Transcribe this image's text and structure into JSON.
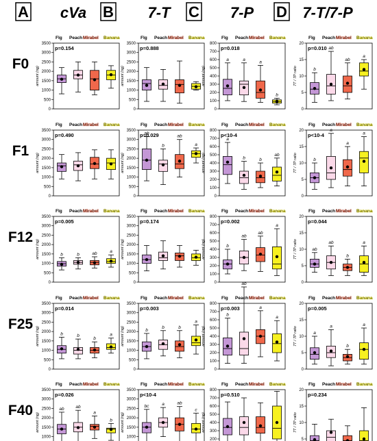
{
  "header": {
    "columns": [
      {
        "letter": "A",
        "title": "cVa"
      },
      {
        "letter": "B",
        "title": "7-T"
      },
      {
        "letter": "C",
        "title": "7-P"
      },
      {
        "letter": "D",
        "title": "7-T/7-P"
      }
    ]
  },
  "row_labels": [
    "F0",
    "F1",
    "F12",
    "F25",
    "F40"
  ],
  "colors": {
    "Flg": "#c497d6",
    "Peach": "#fbd9e9",
    "Mirabel": "#f0684b",
    "Banana": "#f7f120"
  },
  "chart_data": {
    "type": "boxplot-grid",
    "categories": [
      "Flg",
      "Peach",
      "Mirabel",
      "Banana"
    ],
    "columns": [
      {
        "key": "cVa",
        "ylabel": "amount (ng)",
        "yticks": [
          "0",
          "500",
          "1000",
          "1500",
          "2000",
          "2500",
          "3000",
          "3500"
        ],
        "ylim": [
          0,
          3500
        ]
      },
      {
        "key": "7-T",
        "ylabel": "amount (ng)",
        "yticks": [
          "0",
          "500",
          "1000",
          "1500",
          "2000",
          "2500",
          "3000",
          "3500"
        ],
        "ylim": [
          0,
          3500
        ]
      },
      {
        "key": "7-P",
        "ylabel": "amount (ng)",
        "yticks": [
          "0",
          "100",
          "200",
          "300",
          "400",
          "500",
          "600",
          "700",
          "800"
        ],
        "ylim": [
          0,
          800
        ]
      },
      {
        "key": "7-T/7-P",
        "ylabel": "7T / 7P ratio",
        "yticks": [
          "0",
          "5",
          "10",
          "15",
          "20"
        ],
        "ylim": [
          0,
          20
        ]
      }
    ],
    "panels": [
      {
        "row": "F0",
        "col": "cVa",
        "p": "p=0.154",
        "letters": [
          "",
          "",
          "",
          ""
        ],
        "boxes": [
          {
            "min": 800,
            "q1": 1400,
            "median": 1600,
            "q3": 1800,
            "max": 2200,
            "mean": 1580
          },
          {
            "min": 900,
            "q1": 1600,
            "median": 1800,
            "q3": 2050,
            "max": 2500,
            "mean": 1800
          },
          {
            "min": 750,
            "q1": 1000,
            "median": 1600,
            "q3": 2050,
            "max": 2500,
            "mean": 1550
          },
          {
            "min": 1100,
            "q1": 1550,
            "median": 1800,
            "q3": 2050,
            "max": 2300,
            "mean": 1820
          }
        ]
      },
      {
        "row": "F0",
        "col": "7-T",
        "p": "p=0.888",
        "letters": [
          "",
          "",
          "",
          ""
        ],
        "boxes": [
          {
            "min": 400,
            "q1": 1000,
            "median": 1350,
            "q3": 1550,
            "max": 2200,
            "mean": 1250
          },
          {
            "min": 400,
            "q1": 1050,
            "median": 1250,
            "q3": 1550,
            "max": 2100,
            "mean": 1320
          },
          {
            "min": 300,
            "q1": 850,
            "median": 1300,
            "q3": 1550,
            "max": 2550,
            "mean": 1250
          },
          {
            "min": 1000,
            "q1": 1050,
            "median": 1200,
            "q3": 1350,
            "max": 1450,
            "mean": 1180
          }
        ]
      },
      {
        "row": "F0",
        "col": "7-P",
        "p": "p=0.018",
        "letters": [
          "a",
          "a",
          "a",
          "b"
        ],
        "boxes": [
          {
            "min": 100,
            "q1": 170,
            "median": 250,
            "q3": 360,
            "max": 560,
            "mean": 280
          },
          {
            "min": 90,
            "q1": 170,
            "median": 300,
            "q3": 340,
            "max": 560,
            "mean": 260
          },
          {
            "min": 80,
            "q1": 130,
            "median": 200,
            "q3": 340,
            "max": 530,
            "mean": 230
          },
          {
            "min": 50,
            "q1": 70,
            "median": 90,
            "q3": 110,
            "max": 130,
            "mean": 90
          }
        ]
      },
      {
        "row": "F0",
        "col": "7-T/7-P",
        "p": "p=0.010",
        "letters": [
          "b",
          "ab",
          "ab",
          "a"
        ],
        "boxes": [
          {
            "min": 2,
            "q1": 4.5,
            "median": 6,
            "q3": 8,
            "max": 11,
            "mean": 6.2
          },
          {
            "min": 2.5,
            "q1": 4.5,
            "median": 7,
            "q3": 10.5,
            "max": 17.5,
            "mean": 7.5
          },
          {
            "min": 3,
            "q1": 5,
            "median": 7,
            "q3": 10,
            "max": 14,
            "mean": 7.8
          },
          {
            "min": 6,
            "q1": 10,
            "median": 11.5,
            "q3": 14,
            "max": 15,
            "mean": 12
          }
        ]
      },
      {
        "row": "F1",
        "col": "cVa",
        "p": "p=0.490",
        "letters": [
          "",
          "",
          "",
          ""
        ],
        "boxes": [
          {
            "min": 900,
            "q1": 1300,
            "median": 1600,
            "q3": 1750,
            "max": 2200,
            "mean": 1550
          },
          {
            "min": 800,
            "q1": 1350,
            "median": 1650,
            "q3": 1850,
            "max": 2300,
            "mean": 1600
          },
          {
            "min": 900,
            "q1": 1450,
            "median": 1700,
            "q3": 2050,
            "max": 2450,
            "mean": 1720
          },
          {
            "min": 900,
            "q1": 1400,
            "median": 1750,
            "q3": 2000,
            "max": 2450,
            "mean": 1700
          }
        ]
      },
      {
        "row": "F1",
        "col": "7-T",
        "p": "p=0.029",
        "letters": [
          "ab",
          "b",
          "ab",
          "a"
        ],
        "boxes": [
          {
            "min": 800,
            "q1": 1400,
            "median": 1900,
            "q3": 2500,
            "max": 3150,
            "mean": 1900
          },
          {
            "min": 600,
            "q1": 1300,
            "median": 1700,
            "q3": 1900,
            "max": 2500,
            "mean": 1650
          },
          {
            "min": 1000,
            "q1": 1450,
            "median": 1700,
            "q3": 2200,
            "max": 3000,
            "mean": 1850
          },
          {
            "min": 1750,
            "q1": 2050,
            "median": 2250,
            "q3": 2400,
            "max": 2550,
            "mean": 2250
          }
        ]
      },
      {
        "row": "F1",
        "col": "7-P",
        "p": "p<10-4",
        "letters": [
          "a",
          "b",
          "b",
          "ab"
        ],
        "boxes": [
          {
            "min": 150,
            "q1": 260,
            "median": 380,
            "q3": 480,
            "max": 650,
            "mean": 410
          },
          {
            "min": 80,
            "q1": 150,
            "median": 220,
            "q3": 300,
            "max": 420,
            "mean": 250
          },
          {
            "min": 100,
            "q1": 160,
            "median": 220,
            "q3": 300,
            "max": 400,
            "mean": 240
          },
          {
            "min": 120,
            "q1": 180,
            "median": 250,
            "q3": 350,
            "max": 460,
            "mean": 290
          }
        ]
      },
      {
        "row": "F1",
        "col": "7-T/7-P",
        "p": "p<10-4",
        "letters": [
          "b",
          "a",
          "a",
          "a"
        ],
        "boxes": [
          {
            "min": 2,
            "q1": 4,
            "median": 5.5,
            "q3": 7,
            "max": 10,
            "mean": 5.5
          },
          {
            "min": 2.5,
            "q1": 5,
            "median": 7,
            "q3": 12,
            "max": 19,
            "mean": 8.5
          },
          {
            "min": 3,
            "q1": 6,
            "median": 8,
            "q3": 11,
            "max": 15,
            "mean": 8.8
          },
          {
            "min": 3,
            "q1": 7,
            "median": 11.5,
            "q3": 13.5,
            "max": 18,
            "mean": 10.5
          }
        ]
      },
      {
        "row": "F12",
        "col": "cVa",
        "p": "p=0.005",
        "letters": [
          "b",
          "b",
          "ab",
          "a"
        ],
        "boxes": [
          {
            "min": 650,
            "q1": 850,
            "median": 980,
            "q3": 1100,
            "max": 1300,
            "mean": 950
          },
          {
            "min": 700,
            "q1": 950,
            "median": 1050,
            "q3": 1150,
            "max": 1300,
            "mean": 1050
          },
          {
            "min": 750,
            "q1": 920,
            "median": 1050,
            "q3": 1150,
            "max": 1350,
            "mean": 1030
          },
          {
            "min": 800,
            "q1": 1000,
            "median": 1100,
            "q3": 1250,
            "max": 1450,
            "mean": 1120
          }
        ]
      },
      {
        "row": "F12",
        "col": "7-T",
        "p": "p=0.174",
        "letters": [
          "",
          "",
          "",
          ""
        ],
        "boxes": [
          {
            "min": 600,
            "q1": 1000,
            "median": 1200,
            "q3": 1450,
            "max": 1950,
            "mean": 1200
          },
          {
            "min": 700,
            "q1": 1150,
            "median": 1300,
            "q3": 1600,
            "max": 2200,
            "mean": 1400
          },
          {
            "min": 800,
            "q1": 1150,
            "median": 1400,
            "q3": 1550,
            "max": 1950,
            "mean": 1380
          },
          {
            "min": 900,
            "q1": 1150,
            "median": 1300,
            "q3": 1500,
            "max": 1700,
            "mean": 1330
          }
        ]
      },
      {
        "row": "F12",
        "col": "7-P",
        "p": "p=0.002",
        "letters": [
          "b",
          "ab",
          "ab",
          "a"
        ],
        "boxes": [
          {
            "min": 100,
            "q1": 160,
            "median": 220,
            "q3": 270,
            "max": 400,
            "mean": 220
          },
          {
            "min": 140,
            "q1": 220,
            "median": 300,
            "q3": 380,
            "max": 520,
            "mean": 300
          },
          {
            "min": 130,
            "q1": 250,
            "median": 330,
            "q3": 420,
            "max": 560,
            "mean": 340
          },
          {
            "min": 80,
            "q1": 160,
            "median": 220,
            "q3": 430,
            "max": 650,
            "mean": 310
          }
        ]
      },
      {
        "row": "F12",
        "col": "7-T/7-P",
        "p": "p=0.044",
        "letters": [
          "ab",
          "ab",
          "b",
          "a"
        ],
        "boxes": [
          {
            "min": 3,
            "q1": 4.5,
            "median": 5.5,
            "q3": 7,
            "max": 9,
            "mean": 5.5
          },
          {
            "min": 2,
            "q1": 4,
            "median": 6,
            "q3": 8,
            "max": 11,
            "mean": 6
          },
          {
            "min": 2,
            "q1": 3.5,
            "median": 4.5,
            "q3": 5.5,
            "max": 7,
            "mean": 4.5
          },
          {
            "min": 2,
            "q1": 3,
            "median": 5.5,
            "q3": 8,
            "max": 11,
            "mean": 6
          }
        ]
      },
      {
        "row": "F25",
        "col": "cVa",
        "p": "p=0.014",
        "letters": [
          "b",
          "b",
          "b",
          "a"
        ],
        "boxes": [
          {
            "min": 550,
            "q1": 850,
            "median": 1050,
            "q3": 1250,
            "max": 1700,
            "mean": 1080
          },
          {
            "min": 550,
            "q1": 800,
            "median": 1000,
            "q3": 1150,
            "max": 1600,
            "mean": 1050
          },
          {
            "min": 600,
            "q1": 850,
            "median": 1000,
            "q3": 1150,
            "max": 1450,
            "mean": 1020
          },
          {
            "min": 850,
            "q1": 1050,
            "median": 1150,
            "q3": 1350,
            "max": 1650,
            "mean": 1180
          }
        ]
      },
      {
        "row": "F25",
        "col": "7-T",
        "p": "p=0.003",
        "letters": [
          "b",
          "b",
          "b",
          "a"
        ],
        "boxes": [
          {
            "min": 550,
            "q1": 950,
            "median": 1200,
            "q3": 1450,
            "max": 1900,
            "mean": 1200
          },
          {
            "min": 700,
            "q1": 1050,
            "median": 1300,
            "q3": 1550,
            "max": 2050,
            "mean": 1350
          },
          {
            "min": 600,
            "q1": 950,
            "median": 1200,
            "q3": 1500,
            "max": 2050,
            "mean": 1300
          },
          {
            "min": 800,
            "q1": 1250,
            "median": 1400,
            "q3": 1750,
            "max": 2350,
            "mean": 1550
          }
        ]
      },
      {
        "row": "F25",
        "col": "7-P",
        "p": "p=0.003",
        "letters": [
          "b",
          "ab",
          "a",
          "a"
        ],
        "boxes": [
          {
            "min": 70,
            "q1": 170,
            "median": 250,
            "q3": 380,
            "max": 620,
            "mean": 280
          },
          {
            "min": 70,
            "q1": 170,
            "median": 250,
            "q3": 450,
            "max": 1000,
            "mean": 370
          },
          {
            "min": 150,
            "q1": 310,
            "median": 400,
            "q3": 480,
            "max": 710,
            "mean": 400
          },
          {
            "min": 100,
            "q1": 200,
            "median": 310,
            "q3": 430,
            "max": 590,
            "mean": 330
          }
        ]
      },
      {
        "row": "F25",
        "col": "7-T/7-P",
        "p": "p=0.005",
        "letters": [
          "a",
          "a",
          "b",
          "a"
        ],
        "boxes": [
          {
            "min": 1.5,
            "q1": 3,
            "median": 4.5,
            "q3": 6.5,
            "max": 10,
            "mean": 5
          },
          {
            "min": 1,
            "q1": 3.5,
            "median": 5,
            "q3": 7,
            "max": 12,
            "mean": 5.5
          },
          {
            "min": 1.5,
            "q1": 2.5,
            "median": 3.5,
            "q3": 4.5,
            "max": 6,
            "mean": 3.8
          },
          {
            "min": 1.5,
            "q1": 3,
            "median": 6,
            "q3": 8,
            "max": 12.5,
            "mean": 6
          }
        ]
      },
      {
        "row": "F40",
        "col": "cVa",
        "p": "p=0.026",
        "letters": [
          "ab",
          "ab",
          "a",
          "b"
        ],
        "boxes": [
          {
            "min": 650,
            "q1": 1150,
            "median": 1400,
            "q3": 1650,
            "max": 2300,
            "mean": 1400
          },
          {
            "min": 600,
            "q1": 1250,
            "median": 1500,
            "q3": 1750,
            "max": 2400,
            "mean": 1480
          },
          {
            "min": 900,
            "q1": 1350,
            "median": 1550,
            "q3": 1650,
            "max": 2100,
            "mean": 1500
          },
          {
            "min": 800,
            "q1": 1200,
            "median": 1400,
            "q3": 1450,
            "max": 1700,
            "mean": 1380
          }
        ]
      },
      {
        "row": "F40",
        "col": "7-T",
        "p": "p<10-4",
        "letters": [
          "bc",
          "a",
          "ab",
          "c"
        ],
        "boxes": [
          {
            "min": 450,
            "q1": 1200,
            "median": 1500,
            "q3": 1750,
            "max": 2450,
            "mean": 1500
          },
          {
            "min": 1000,
            "q1": 1500,
            "median": 1750,
            "q3": 2000,
            "max": 2550,
            "mean": 1750
          },
          {
            "min": 700,
            "q1": 1300,
            "median": 1650,
            "q3": 2000,
            "max": 2600,
            "mean": 1650
          },
          {
            "min": 750,
            "q1": 1200,
            "median": 1400,
            "q3": 1700,
            "max": 2250,
            "mean": 1400
          }
        ]
      },
      {
        "row": "F40",
        "col": "7-P",
        "p": "p=0.510",
        "letters": [
          "",
          "",
          "",
          ""
        ],
        "boxes": [
          {
            "min": 100,
            "q1": 250,
            "median": 340,
            "q3": 450,
            "max": 650,
            "mean": 350
          },
          {
            "min": 80,
            "q1": 250,
            "median": 340,
            "q3": 470,
            "max": 700,
            "mean": 400
          },
          {
            "min": 80,
            "q1": 270,
            "median": 340,
            "q3": 470,
            "max": 640,
            "mean": 360
          },
          {
            "min": 80,
            "q1": 200,
            "median": 330,
            "q3": 600,
            "max": 780,
            "mean": 400
          }
        ]
      },
      {
        "row": "F40",
        "col": "7-T/7-P",
        "p": "p=0.234",
        "letters": [
          "",
          "",
          "",
          ""
        ],
        "boxes": [
          {
            "min": 1.5,
            "q1": 3,
            "median": 4.5,
            "q3": 6,
            "max": 9.5,
            "mean": 4.8
          },
          {
            "min": 2,
            "q1": 4,
            "median": 5.5,
            "q3": 7.5,
            "max": 11,
            "mean": 7
          },
          {
            "min": 1.5,
            "q1": 3.5,
            "median": 4.5,
            "q3": 6,
            "max": 9,
            "mean": 4.5
          },
          {
            "min": 1,
            "q1": 3,
            "median": 4.5,
            "q3": 7.5,
            "max": 14.5,
            "mean": 5
          }
        ]
      }
    ]
  }
}
